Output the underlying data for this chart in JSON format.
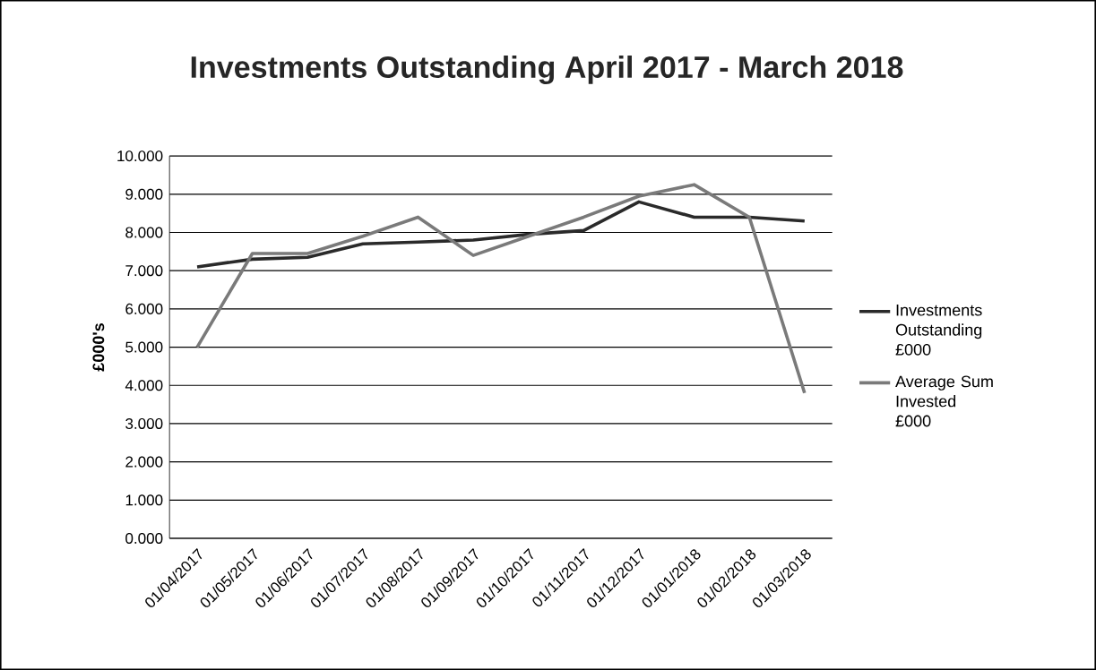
{
  "chart_data": {
    "type": "line",
    "title": "Investments Outstanding April 2017 - March 2018",
    "ylabel": "£000's",
    "categories": [
      "01/04/2017",
      "01/05/2017",
      "01/06/2017",
      "01/07/2017",
      "01/08/2017",
      "01/09/2017",
      "01/10/2017",
      "01/11/2017",
      "01/12/2017",
      "01/01/2018",
      "01/02/2018",
      "01/03/2018"
    ],
    "series": [
      {
        "name": "Investments Outstanding £000",
        "color": "#2a2a2a",
        "values": [
          7.1,
          7.3,
          7.35,
          7.7,
          7.75,
          7.8,
          7.95,
          8.05,
          8.8,
          8.4,
          8.4,
          8.3
        ]
      },
      {
        "name": "Average Sum Invested £000",
        "color": "#7a7a7a",
        "values": [
          5.0,
          7.45,
          7.45,
          7.9,
          8.4,
          7.4,
          7.9,
          8.4,
          8.95,
          9.25,
          8.4,
          3.8
        ]
      }
    ],
    "ylim": [
      0,
      10
    ],
    "yticks": [
      {
        "value": 0,
        "label": "0.000"
      },
      {
        "value": 1,
        "label": "1.000"
      },
      {
        "value": 2,
        "label": "2.000"
      },
      {
        "value": 3,
        "label": "3.000"
      },
      {
        "value": 4,
        "label": "4.000"
      },
      {
        "value": 5,
        "label": "5.000"
      },
      {
        "value": 6,
        "label": "6.000"
      },
      {
        "value": 7,
        "label": "7.000"
      },
      {
        "value": 8,
        "label": "8.000"
      },
      {
        "value": 9,
        "label": "9.000"
      },
      {
        "value": 10,
        "label": "10.000"
      }
    ],
    "grid": "y",
    "legend": "right",
    "marker": "none",
    "line_style": "solid"
  }
}
